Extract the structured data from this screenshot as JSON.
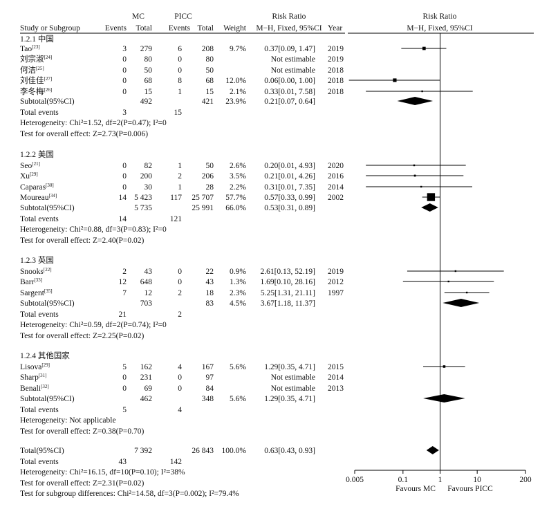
{
  "chart_data": {
    "type": "forest",
    "header": {
      "group1": "MC",
      "group2": "PICC",
      "study_col": "Study or Subgroup",
      "events": "Events",
      "total": "Total",
      "weight": "Weight",
      "rr_title": "Risk Ratio",
      "rr_method": "M−H, Fixed, 95%CI",
      "year": "Year",
      "plot_title": "Risk Ratio",
      "plot_method": "M−H, Fixed, 95%CI"
    },
    "axis": {
      "scale": "log",
      "ticks": [
        0.005,
        0.1,
        1,
        10,
        200
      ],
      "tick_labels": [
        "0.005",
        "0.1",
        "1",
        "10",
        "200"
      ],
      "left_label": "Favours MC",
      "right_label": "Favours PICC"
    },
    "subgroups": [
      {
        "title": "1.2.1 中国",
        "studies": [
          {
            "name": "Tao",
            "ref": "[23]",
            "e1": "3",
            "n1": "279",
            "e2": "6",
            "n2": "208",
            "weight": "9.7%",
            "ci_text": "0.37[0.09, 1.47]",
            "year": "2019",
            "rr": 0.37,
            "lo": 0.09,
            "hi": 1.47
          },
          {
            "name": "刘宗淑",
            "ref": "[24]",
            "e1": "0",
            "n1": "80",
            "e2": "0",
            "n2": "80",
            "weight": "",
            "ci_text": "Not estimable",
            "year": "2019",
            "rr": null,
            "lo": null,
            "hi": null
          },
          {
            "name": "何洁",
            "ref": "[25]",
            "e1": "0",
            "n1": "50",
            "e2": "0",
            "n2": "50",
            "weight": "",
            "ci_text": "Not estimable",
            "year": "2018",
            "rr": null,
            "lo": null,
            "hi": null
          },
          {
            "name": "刘佳佳",
            "ref": "[27]",
            "e1": "0",
            "n1": "68",
            "e2": "8",
            "n2": "68",
            "weight": "12.0%",
            "ci_text": "0.06[0.00, 1.00]",
            "year": "2018",
            "rr": 0.06,
            "lo": 0.0035,
            "hi": 1.0
          },
          {
            "name": "李冬梅",
            "ref": "[26]",
            "e1": "0",
            "n1": "15",
            "e2": "1",
            "n2": "15",
            "weight": "2.1%",
            "ci_text": "0.33[0.01, 7.58]",
            "year": "2018",
            "rr": 0.33,
            "lo": 0.01,
            "hi": 7.58
          }
        ],
        "subtotal": {
          "label": "Subtotal(95%CI)",
          "n1": "492",
          "n2": "421",
          "weight": "23.9%",
          "ci_text": "0.21[0.07, 0.64]",
          "rr": 0.21,
          "lo": 0.07,
          "hi": 0.64
        },
        "events": {
          "label": "Total events",
          "e1": "3",
          "e2": "15"
        },
        "heterogeneity": "Heterogeneity: Chi²=1.52, df=2(P=0.47); I²=0",
        "overall": "Test for overall effect: Z=2.73(P=0.006)"
      },
      {
        "title": "1.2.2 美国",
        "studies": [
          {
            "name": "Seo",
            "ref": "[21]",
            "e1": "0",
            "n1": "82",
            "e2": "1",
            "n2": "50",
            "weight": "2.6%",
            "ci_text": "0.20[0.01, 4.93]",
            "year": "2020",
            "rr": 0.2,
            "lo": 0.01,
            "hi": 4.93
          },
          {
            "name": "Xu",
            "ref": "[29]",
            "e1": "0",
            "n1": "200",
            "e2": "2",
            "n2": "206",
            "weight": "3.5%",
            "ci_text": "0.21[0.01, 4.26]",
            "year": "2016",
            "rr": 0.21,
            "lo": 0.01,
            "hi": 4.26
          },
          {
            "name": "Caparas",
            "ref": "[30]",
            "e1": "0",
            "n1": "30",
            "e2": "1",
            "n2": "28",
            "weight": "2.2%",
            "ci_text": "0.31[0.01, 7.35]",
            "year": "2014",
            "rr": 0.31,
            "lo": 0.01,
            "hi": 7.35
          },
          {
            "name": "Moureau",
            "ref": "[34]",
            "e1": "14",
            "n1": "5 423",
            "e2": "117",
            "n2": "25 707",
            "weight": "57.7%",
            "ci_text": "0.57[0.33, 0.99]",
            "year": "2002",
            "rr": 0.57,
            "lo": 0.33,
            "hi": 0.99
          }
        ],
        "subtotal": {
          "label": "Subtotal(95%CI)",
          "n1": "5 735",
          "n2": "25 991",
          "weight": "66.0%",
          "ci_text": "0.53[0.31, 0.89]",
          "rr": 0.53,
          "lo": 0.31,
          "hi": 0.89
        },
        "events": {
          "label": "Total events",
          "e1": "14",
          "e2": "121"
        },
        "heterogeneity": "Heterogeneity: Chi²=0.88, df=3(P=0.83); I²=0",
        "overall": "Test for overall effect: Z=2.40(P=0.02)"
      },
      {
        "title": "1.2.3 英国",
        "studies": [
          {
            "name": "Snooks",
            "ref": "[22]",
            "e1": "2",
            "n1": "43",
            "e2": "0",
            "n2": "22",
            "weight": "0.9%",
            "ci_text": "2.61[0.13, 52.19]",
            "year": "2019",
            "rr": 2.61,
            "lo": 0.13,
            "hi": 52.19
          },
          {
            "name": "Barr",
            "ref": "[33]",
            "e1": "12",
            "n1": "648",
            "e2": "0",
            "n2": "43",
            "weight": "1.3%",
            "ci_text": "1.69[0.10, 28.16]",
            "year": "2012",
            "rr": 1.69,
            "lo": 0.1,
            "hi": 28.16
          },
          {
            "name": "Sargent",
            "ref": "[35]",
            "e1": "7",
            "n1": "12",
            "e2": "2",
            "n2": "18",
            "weight": "2.3%",
            "ci_text": "5.25[1.31, 21.11]",
            "year": "1997",
            "rr": 5.25,
            "lo": 1.31,
            "hi": 21.11
          }
        ],
        "subtotal": {
          "label": "Subtotal(95%CI)",
          "n1": "703",
          "n2": "83",
          "weight": "4.5%",
          "ci_text": "3.67[1.18, 11.37]",
          "rr": 3.67,
          "lo": 1.18,
          "hi": 11.37
        },
        "events": {
          "label": "Total events",
          "e1": "21",
          "e2": "2"
        },
        "heterogeneity": "Heterogeneity: Chi²=0.59, df=2(P=0.74); I²=0",
        "overall": "Test for overall effect: Z=2.25(P=0.02)"
      },
      {
        "title": "1.2.4 其他国家",
        "studies": [
          {
            "name": "Lisova",
            "ref": "[29]",
            "e1": "5",
            "n1": "162",
            "e2": "4",
            "n2": "167",
            "weight": "5.6%",
            "ci_text": "1.29[0.35, 4.71]",
            "year": "2015",
            "rr": 1.29,
            "lo": 0.35,
            "hi": 4.71
          },
          {
            "name": "Sharp",
            "ref": "[31]",
            "e1": "0",
            "n1": "231",
            "e2": "0",
            "n2": "97",
            "weight": "",
            "ci_text": "Not estimable",
            "year": "2014",
            "rr": null,
            "lo": null,
            "hi": null
          },
          {
            "name": "Benali",
            "ref": "[32]",
            "e1": "0",
            "n1": "69",
            "e2": "0",
            "n2": "84",
            "weight": "",
            "ci_text": "Not estimable",
            "year": "2013",
            "rr": null,
            "lo": null,
            "hi": null
          }
        ],
        "subtotal": {
          "label": "Subtotal(95%CI)",
          "n1": "462",
          "n2": "348",
          "weight": "5.6%",
          "ci_text": "1.29[0.35, 4.71]",
          "rr": 1.29,
          "lo": 0.35,
          "hi": 4.71
        },
        "events": {
          "label": "Total events",
          "e1": "5",
          "e2": "4"
        },
        "heterogeneity": "Heterogeneity: Not applicable",
        "overall": "Test for overall effect: Z=0.38(P=0.70)"
      }
    ],
    "total": {
      "label": "Total(95%CI)",
      "n1": "7 392",
      "n2": "26 843",
      "weight": "100.0%",
      "ci_text": "0.63[0.43, 0.93]",
      "rr": 0.63,
      "lo": 0.43,
      "hi": 0.93,
      "events_label": "Total events",
      "e1": "43",
      "e2": "142",
      "heterogeneity": "Heterogeneity: Chi²=16.15, df=10(P=0.10); I²=38%",
      "overall": "Test for overall effect: Z=2.31(P=0.02)",
      "subgroup_diff": "Test for subgroup differences: Chi²=14.58, df=3(P=0.002); I²=79.4%"
    }
  }
}
